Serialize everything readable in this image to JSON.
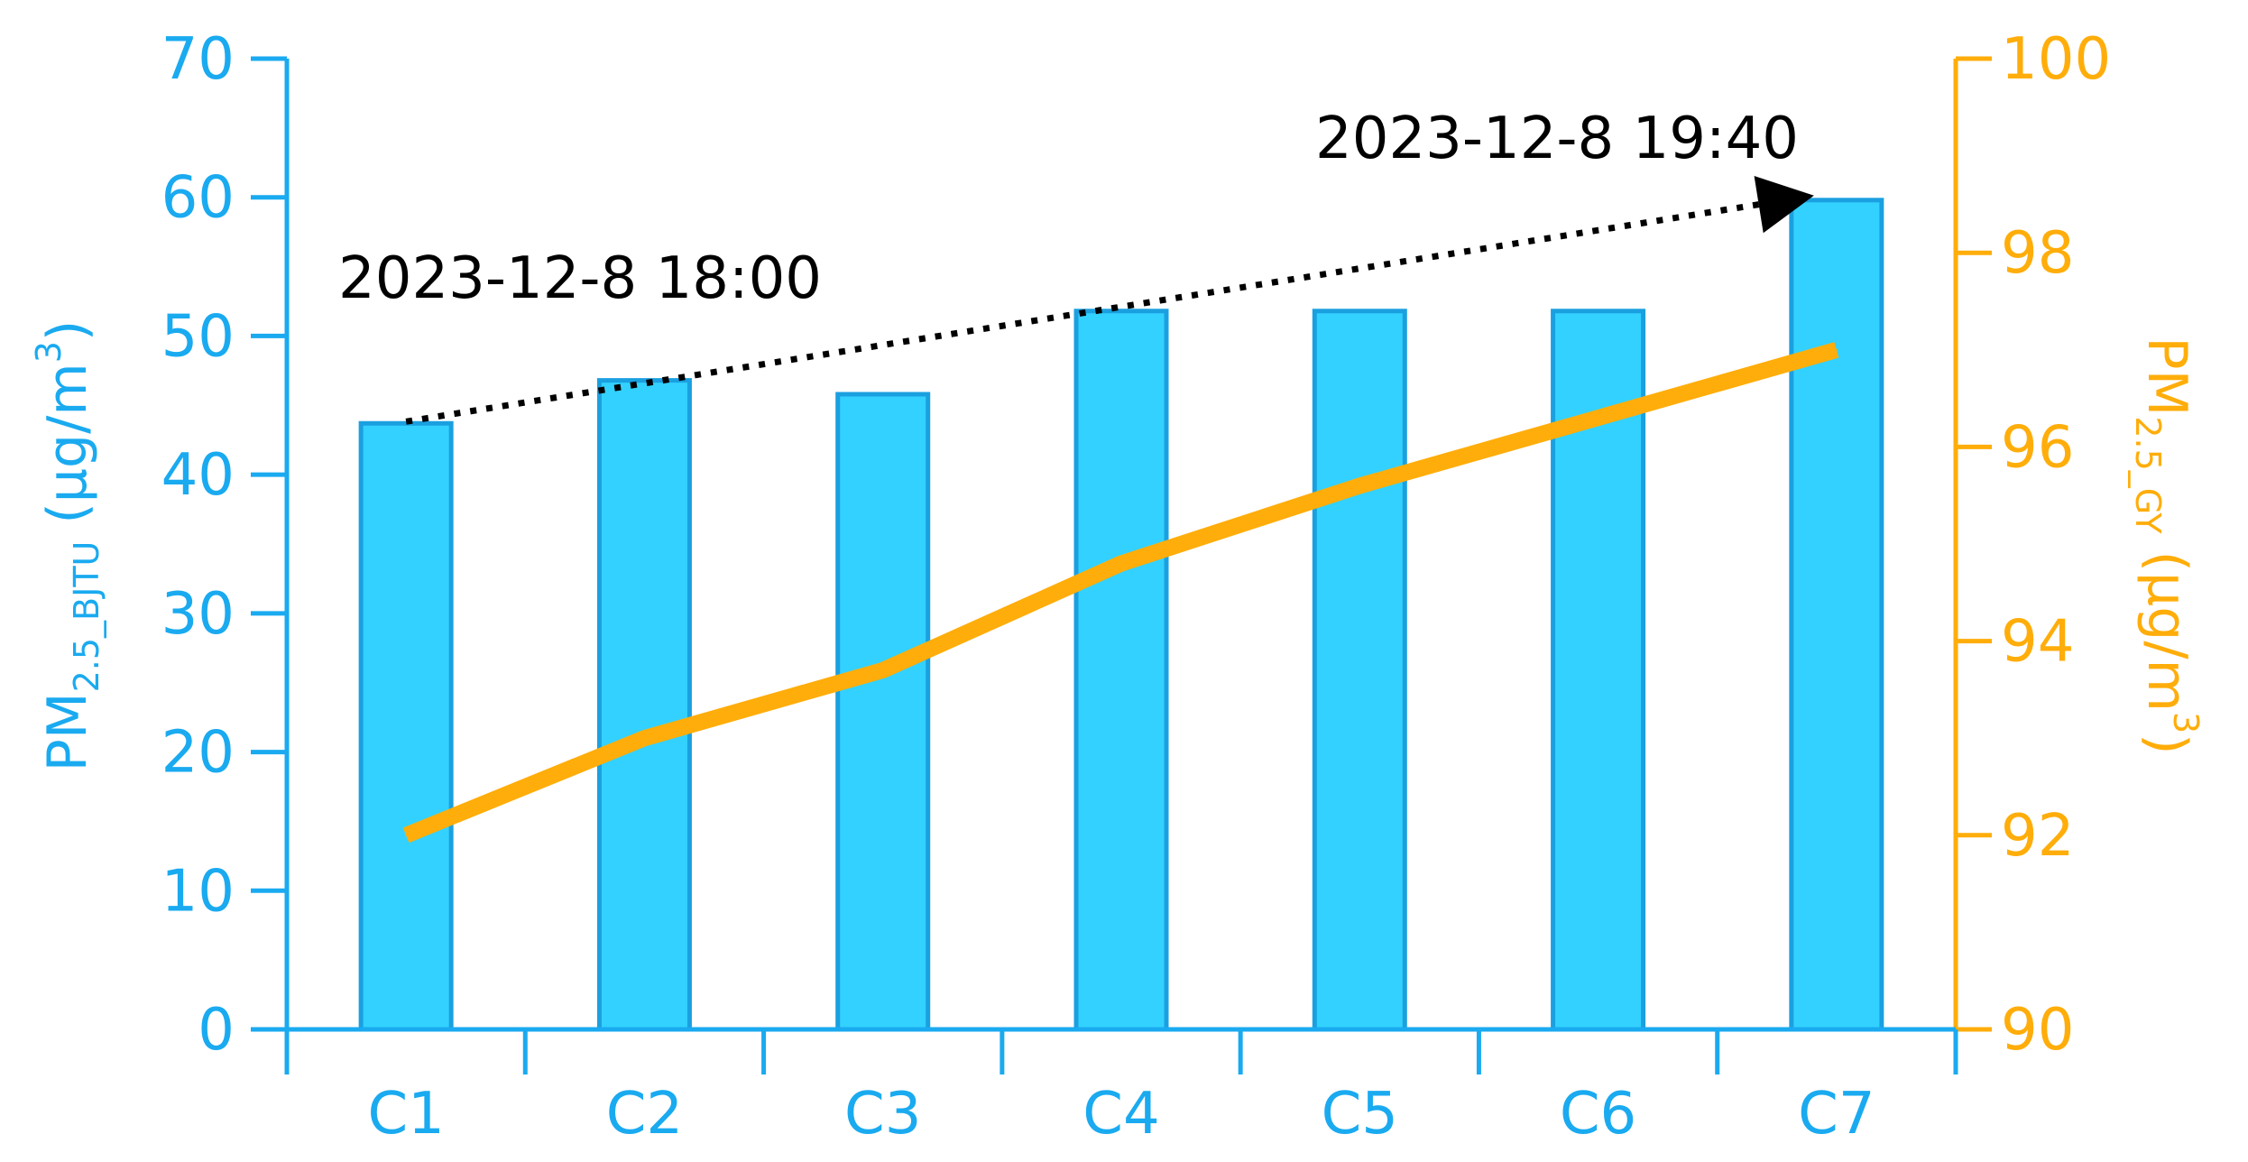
{
  "colors": {
    "left_axis": "#1aaaf0",
    "bar_fill": "#33d1ff",
    "bar_stroke": "#1aa0e0",
    "right_axis": "#ffad0a",
    "line": "#ffad0a",
    "annotation": "#000000"
  },
  "chart_data": {
    "type": "bar",
    "categories": [
      "C1",
      "C2",
      "C3",
      "C4",
      "C5",
      "C6",
      "C7"
    ],
    "series": [
      {
        "type": "bar",
        "axis": "left",
        "values": [
          43.7,
          46.8,
          45.8,
          51.8,
          51.8,
          51.8,
          59.8
        ]
      },
      {
        "type": "line",
        "axis": "right",
        "values": [
          92.0,
          93.0,
          93.7,
          94.8,
          95.6,
          96.3,
          97.0
        ]
      }
    ],
    "y_left": {
      "label_main": "PM",
      "label_sub": "2.5_BJTU",
      "label_unit": " (µg/m",
      "label_sup": "3",
      "label_close": ")",
      "ylim": [
        0,
        70
      ],
      "ticks": [
        0,
        10,
        20,
        30,
        40,
        50,
        60,
        70
      ]
    },
    "y_right": {
      "label_main": "PM",
      "label_sub": "2.5_GY",
      "label_unit": " (µg/m",
      "label_sup": "3",
      "label_close": ")",
      "ylim": [
        90,
        100
      ],
      "ticks": [
        90,
        92,
        94,
        96,
        98,
        100
      ]
    },
    "annotations": {
      "start_label": "2023-12-8 18:00",
      "end_label": "2023-12-8 19:40",
      "arrow_style": "dotted",
      "arrow_from": "C1",
      "arrow_to": "C7"
    },
    "grid": false,
    "legend": "none"
  }
}
